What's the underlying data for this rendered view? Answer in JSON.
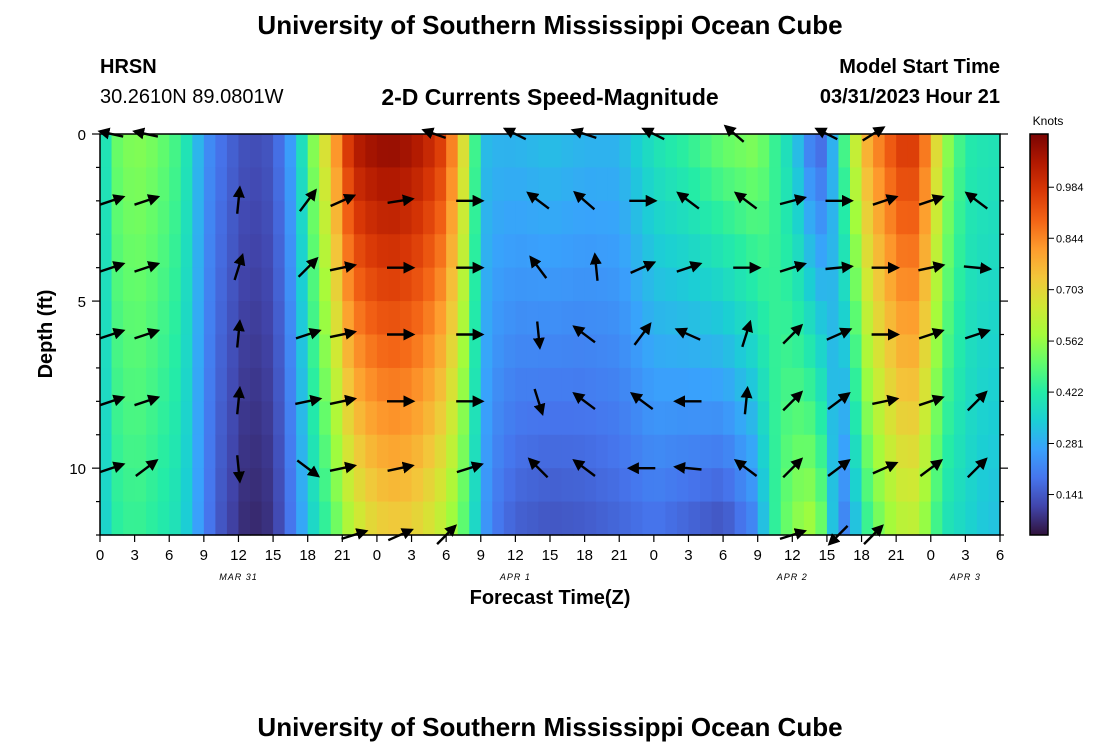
{
  "header": {
    "title": "University of Southern Mississippi Ocean Cube",
    "station_code": "HRSN",
    "station_coords": "30.2610N  89.0801W",
    "plot_title": "2-D Currents Speed-Magnitude",
    "model_start_label": "Model Start Time",
    "model_start_value": "03/31/2023 Hour 21"
  },
  "footer": {
    "title": "University of Southern Mississippi Ocean Cube"
  },
  "chart_data": {
    "type": "heatmap",
    "xlabel": "Forecast Time(Z)",
    "ylabel": "Depth (ft)",
    "x_tick_labels": [
      "0",
      "3",
      "6",
      "9",
      "12",
      "15",
      "18",
      "21",
      "0",
      "3",
      "6",
      "9",
      "12",
      "15",
      "18",
      "21",
      "0",
      "3",
      "6",
      "9",
      "12",
      "15",
      "18",
      "21",
      "0",
      "3",
      "6"
    ],
    "x_hours_range": [
      0,
      78
    ],
    "date_labels": [
      {
        "text": "MAR 31",
        "hour": 12
      },
      {
        "text": "APR 1",
        "hour": 36
      },
      {
        "text": "APR 2",
        "hour": 60
      },
      {
        "text": "APR 3",
        "hour": 75
      }
    ],
    "y_ticks": [
      0,
      5,
      10
    ],
    "ylim": [
      0,
      12
    ],
    "y_inverted": true,
    "colorbar": {
      "label": "Knots",
      "ticks": [
        "0.984",
        "0.844",
        "0.703",
        "0.562",
        "0.422",
        "0.281",
        "0.141"
      ],
      "tick_values": [
        0.984,
        0.844,
        0.703,
        0.562,
        0.422,
        0.281,
        0.141
      ],
      "range": [
        0.03,
        1.13
      ],
      "colors": [
        "#30123b",
        "#4145ab",
        "#4675ed",
        "#39a2fc",
        "#1bcfd4",
        "#24eca6",
        "#61fc6c",
        "#a4fc3b",
        "#d1e834",
        "#f3c63a",
        "#fe9b2d",
        "#f36315",
        "#d93806",
        "#b11901",
        "#7a0403"
      ]
    },
    "speed_profile": {
      "hour": [
        0,
        1,
        3,
        5,
        7,
        9,
        10,
        11,
        12,
        13,
        15,
        17,
        18,
        19,
        20,
        21,
        22,
        24,
        26,
        28,
        30,
        32,
        33,
        34,
        36,
        39,
        42,
        45,
        48,
        51,
        54,
        57,
        58,
        60,
        62,
        63,
        64,
        65,
        66,
        68,
        70,
        71,
        72,
        73,
        75,
        77,
        78
      ],
      "speed_surface": [
        0.3,
        0.5,
        0.55,
        0.52,
        0.45,
        0.25,
        0.2,
        0.17,
        0.14,
        0.12,
        0.14,
        0.3,
        0.48,
        0.62,
        0.75,
        0.92,
        1.05,
        1.1,
        1.1,
        1.05,
        0.95,
        0.6,
        0.32,
        0.3,
        0.3,
        0.32,
        0.3,
        0.3,
        0.4,
        0.45,
        0.52,
        0.55,
        0.48,
        0.35,
        0.15,
        0.18,
        0.4,
        0.55,
        0.75,
        0.9,
        1.0,
        0.95,
        0.8,
        0.6,
        0.42,
        0.4,
        0.4
      ],
      "speed_bottom": [
        0.3,
        0.42,
        0.45,
        0.42,
        0.38,
        0.22,
        0.15,
        0.12,
        0.08,
        0.06,
        0.08,
        0.22,
        0.32,
        0.4,
        0.46,
        0.55,
        0.62,
        0.7,
        0.72,
        0.68,
        0.6,
        0.45,
        0.28,
        0.2,
        0.15,
        0.13,
        0.14,
        0.16,
        0.18,
        0.15,
        0.12,
        0.22,
        0.4,
        0.55,
        0.6,
        0.45,
        0.2,
        0.22,
        0.4,
        0.55,
        0.62,
        0.6,
        0.5,
        0.4,
        0.36,
        0.32,
        0.32
      ]
    },
    "vectors": [
      {
        "hour": 1,
        "depth": 0,
        "u": -0.9,
        "v": 0.2
      },
      {
        "hour": 4,
        "depth": 0,
        "u": -0.9,
        "v": 0.2
      },
      {
        "hour": 29,
        "depth": 0,
        "u": -0.85,
        "v": 0.3
      },
      {
        "hour": 36,
        "depth": 0,
        "u": -0.8,
        "v": 0.4
      },
      {
        "hour": 42,
        "depth": 0,
        "u": -0.9,
        "v": 0.3
      },
      {
        "hour": 48,
        "depth": 0,
        "u": -0.8,
        "v": 0.4
      },
      {
        "hour": 55,
        "depth": 0,
        "u": -0.7,
        "v": 0.6
      },
      {
        "hour": 63,
        "depth": 0,
        "u": -0.8,
        "v": 0.4
      },
      {
        "hour": 67,
        "depth": 0,
        "u": 0.8,
        "v": 0.5
      },
      {
        "hour": 1,
        "depth": 2,
        "u": 0.9,
        "v": 0.3
      },
      {
        "hour": 4,
        "depth": 2,
        "u": 0.9,
        "v": 0.3
      },
      {
        "hour": 12,
        "depth": 2,
        "u": 0.1,
        "v": 1.0
      },
      {
        "hour": 18,
        "depth": 2,
        "u": 0.6,
        "v": 0.8
      },
      {
        "hour": 21,
        "depth": 2,
        "u": 0.9,
        "v": 0.4
      },
      {
        "hour": 26,
        "depth": 2,
        "u": 0.95,
        "v": 0.15
      },
      {
        "hour": 32,
        "depth": 2,
        "u": 1.0,
        "v": 0.0
      },
      {
        "hour": 38,
        "depth": 2,
        "u": -0.8,
        "v": 0.6
      },
      {
        "hour": 42,
        "depth": 2,
        "u": -0.75,
        "v": 0.65
      },
      {
        "hour": 47,
        "depth": 2,
        "u": 1.0,
        "v": 0.0
      },
      {
        "hour": 51,
        "depth": 2,
        "u": -0.8,
        "v": 0.6
      },
      {
        "hour": 56,
        "depth": 2,
        "u": -0.8,
        "v": 0.6
      },
      {
        "hour": 60,
        "depth": 2,
        "u": 0.95,
        "v": 0.25
      },
      {
        "hour": 64,
        "depth": 2,
        "u": 1.0,
        "v": 0.0
      },
      {
        "hour": 68,
        "depth": 2,
        "u": 0.9,
        "v": 0.3
      },
      {
        "hour": 72,
        "depth": 2,
        "u": 0.9,
        "v": 0.3
      },
      {
        "hour": 76,
        "depth": 2,
        "u": -0.8,
        "v": 0.6
      },
      {
        "hour": 1,
        "depth": 4,
        "u": 0.9,
        "v": 0.3
      },
      {
        "hour": 4,
        "depth": 4,
        "u": 0.9,
        "v": 0.3
      },
      {
        "hour": 12,
        "depth": 4,
        "u": 0.3,
        "v": 0.95
      },
      {
        "hour": 18,
        "depth": 4,
        "u": 0.7,
        "v": 0.7
      },
      {
        "hour": 21,
        "depth": 4,
        "u": 0.95,
        "v": 0.2
      },
      {
        "hour": 26,
        "depth": 4,
        "u": 1.0,
        "v": 0.0
      },
      {
        "hour": 32,
        "depth": 4,
        "u": 1.0,
        "v": 0.0
      },
      {
        "hour": 38,
        "depth": 4,
        "u": -0.6,
        "v": 0.8
      },
      {
        "hour": 43,
        "depth": 4,
        "u": -0.1,
        "v": 1.0
      },
      {
        "hour": 47,
        "depth": 4,
        "u": 0.9,
        "v": 0.4
      },
      {
        "hour": 51,
        "depth": 4,
        "u": 0.9,
        "v": 0.3
      },
      {
        "hour": 56,
        "depth": 4,
        "u": 1.0,
        "v": 0.0
      },
      {
        "hour": 60,
        "depth": 4,
        "u": 0.95,
        "v": 0.3
      },
      {
        "hour": 64,
        "depth": 4,
        "u": 1.0,
        "v": 0.1
      },
      {
        "hour": 68,
        "depth": 4,
        "u": 1.0,
        "v": 0.0
      },
      {
        "hour": 72,
        "depth": 4,
        "u": 0.95,
        "v": 0.2
      },
      {
        "hour": 76,
        "depth": 4,
        "u": 1.0,
        "v": -0.1
      },
      {
        "hour": 1,
        "depth": 6,
        "u": 0.9,
        "v": 0.3
      },
      {
        "hour": 4,
        "depth": 6,
        "u": 0.9,
        "v": 0.3
      },
      {
        "hour": 12,
        "depth": 6,
        "u": 0.1,
        "v": 1.0
      },
      {
        "hour": 18,
        "depth": 6,
        "u": 0.9,
        "v": 0.3
      },
      {
        "hour": 21,
        "depth": 6,
        "u": 0.95,
        "v": 0.2
      },
      {
        "hour": 26,
        "depth": 6,
        "u": 1.0,
        "v": 0.0
      },
      {
        "hour": 32,
        "depth": 6,
        "u": 1.0,
        "v": 0.0
      },
      {
        "hour": 38,
        "depth": 6,
        "u": 0.1,
        "v": -1.0
      },
      {
        "hour": 42,
        "depth": 6,
        "u": -0.8,
        "v": 0.6
      },
      {
        "hour": 47,
        "depth": 6,
        "u": 0.6,
        "v": 0.8
      },
      {
        "hour": 51,
        "depth": 6,
        "u": -0.9,
        "v": 0.4
      },
      {
        "hour": 56,
        "depth": 6,
        "u": 0.3,
        "v": 0.95
      },
      {
        "hour": 60,
        "depth": 6,
        "u": 0.7,
        "v": 0.7
      },
      {
        "hour": 64,
        "depth": 6,
        "u": 0.9,
        "v": 0.4
      },
      {
        "hour": 68,
        "depth": 6,
        "u": 1.0,
        "v": 0.0
      },
      {
        "hour": 72,
        "depth": 6,
        "u": 0.9,
        "v": 0.3
      },
      {
        "hour": 76,
        "depth": 6,
        "u": 0.9,
        "v": 0.3
      },
      {
        "hour": 1,
        "depth": 8,
        "u": 0.9,
        "v": 0.3
      },
      {
        "hour": 4,
        "depth": 8,
        "u": 0.9,
        "v": 0.3
      },
      {
        "hour": 12,
        "depth": 8,
        "u": 0.1,
        "v": 1.0
      },
      {
        "hour": 18,
        "depth": 8,
        "u": 0.95,
        "v": 0.2
      },
      {
        "hour": 21,
        "depth": 8,
        "u": 0.95,
        "v": 0.2
      },
      {
        "hour": 26,
        "depth": 8,
        "u": 1.0,
        "v": 0.0
      },
      {
        "hour": 32,
        "depth": 8,
        "u": 1.0,
        "v": 0.0
      },
      {
        "hour": 38,
        "depth": 8,
        "u": 0.3,
        "v": -0.95
      },
      {
        "hour": 42,
        "depth": 8,
        "u": -0.8,
        "v": 0.6
      },
      {
        "hour": 47,
        "depth": 8,
        "u": -0.8,
        "v": 0.6
      },
      {
        "hour": 51,
        "depth": 8,
        "u": -1.0,
        "v": 0.0
      },
      {
        "hour": 56,
        "depth": 8,
        "u": 0.1,
        "v": 1.0
      },
      {
        "hour": 60,
        "depth": 8,
        "u": 0.7,
        "v": 0.7
      },
      {
        "hour": 64,
        "depth": 8,
        "u": 0.8,
        "v": 0.6
      },
      {
        "hour": 68,
        "depth": 8,
        "u": 0.95,
        "v": 0.2
      },
      {
        "hour": 72,
        "depth": 8,
        "u": 0.9,
        "v": 0.3
      },
      {
        "hour": 76,
        "depth": 8,
        "u": 0.7,
        "v": 0.7
      },
      {
        "hour": 1,
        "depth": 10,
        "u": 0.9,
        "v": 0.3
      },
      {
        "hour": 4,
        "depth": 10,
        "u": 0.8,
        "v": 0.6
      },
      {
        "hour": 12,
        "depth": 10,
        "u": 0.1,
        "v": -1.0
      },
      {
        "hour": 18,
        "depth": 10,
        "u": 0.8,
        "v": -0.6
      },
      {
        "hour": 21,
        "depth": 10,
        "u": 0.95,
        "v": 0.2
      },
      {
        "hour": 26,
        "depth": 10,
        "u": 0.95,
        "v": 0.2
      },
      {
        "hour": 32,
        "depth": 10,
        "u": 0.95,
        "v": 0.3
      },
      {
        "hour": 38,
        "depth": 10,
        "u": -0.7,
        "v": 0.7
      },
      {
        "hour": 42,
        "depth": 10,
        "u": -0.8,
        "v": 0.6
      },
      {
        "hour": 47,
        "depth": 10,
        "u": -1.0,
        "v": 0.0
      },
      {
        "hour": 51,
        "depth": 10,
        "u": -1.0,
        "v": 0.1
      },
      {
        "hour": 56,
        "depth": 10,
        "u": -0.8,
        "v": 0.6
      },
      {
        "hour": 60,
        "depth": 10,
        "u": 0.7,
        "v": 0.7
      },
      {
        "hour": 64,
        "depth": 10,
        "u": 0.8,
        "v": 0.6
      },
      {
        "hour": 68,
        "depth": 10,
        "u": 0.9,
        "v": 0.4
      },
      {
        "hour": 72,
        "depth": 10,
        "u": 0.8,
        "v": 0.6
      },
      {
        "hour": 76,
        "depth": 10,
        "u": 0.7,
        "v": 0.7
      },
      {
        "hour": 22,
        "depth": 12,
        "u": 0.95,
        "v": 0.3
      },
      {
        "hour": 26,
        "depth": 12,
        "u": 0.9,
        "v": 0.4
      },
      {
        "hour": 30,
        "depth": 12,
        "u": 0.7,
        "v": 0.7
      },
      {
        "hour": 60,
        "depth": 12,
        "u": 0.95,
        "v": 0.3
      },
      {
        "hour": 64,
        "depth": 12,
        "u": -0.7,
        "v": -0.7
      },
      {
        "hour": 67,
        "depth": 12,
        "u": 0.7,
        "v": 0.7
      }
    ]
  }
}
